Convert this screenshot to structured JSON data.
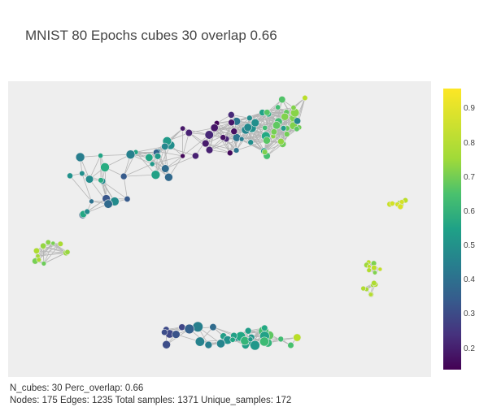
{
  "title": "MNIST 80 Epochs cubes 30 overlap 0.66",
  "colorbar": {
    "colorscale": "viridis",
    "ticks": [
      "0.9",
      "0.8",
      "0.7",
      "0.6",
      "0.5",
      "0.4",
      "0.3",
      "0.2"
    ],
    "tick_values": [
      0.9,
      0.8,
      0.7,
      0.6,
      0.5,
      0.4,
      0.3,
      0.2
    ],
    "range": [
      0.14,
      0.96
    ]
  },
  "footer": {
    "line1": "N_cubes: 30 Perc_overlap: 0.66",
    "line2": "Nodes: 175 Edges: 1235 Total samples: 1371 Unique_samples: 172"
  },
  "graph": {
    "edge_color": "#b5b5b5",
    "background": "#eeeeee",
    "node_count": 175,
    "edge_count": 1235
  }
}
